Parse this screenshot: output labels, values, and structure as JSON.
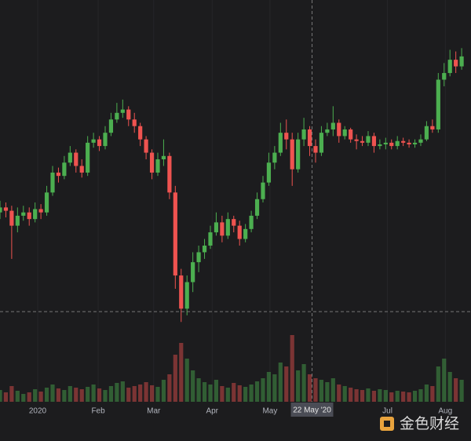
{
  "chart_data": {
    "type": "candlestick",
    "open": [
      7100,
      7250,
      7150,
      6700,
      7000,
      7100,
      6900,
      7200,
      7100,
      7700,
      8300,
      8200,
      8600,
      8900,
      8500,
      8300,
      9200,
      9300,
      9100,
      9500,
      9900,
      10100,
      10200,
      9900,
      9700,
      9300,
      8900,
      8300,
      8700,
      8800,
      7700,
      5200,
      4200,
      5000,
      5600,
      5900,
      6100,
      6500,
      6800,
      6400,
      6900,
      6700,
      6300,
      6600,
      7000,
      7500,
      8000,
      8600,
      8900,
      9500,
      9300,
      8400,
      9300,
      9600,
      9100,
      8900,
      9500,
      9600,
      9800,
      9400,
      9600,
      9300,
      9250,
      9200,
      9400,
      9100,
      9150,
      9200,
      9100,
      9250,
      9200,
      9150,
      9200,
      9300,
      9700,
      9600,
      11100,
      11300,
      11700,
      11500
    ],
    "high": [
      7450,
      7400,
      7300,
      7250,
      7300,
      7250,
      7400,
      7350,
      7900,
      8500,
      8450,
      8800,
      9100,
      9000,
      8700,
      9400,
      9500,
      9400,
      9700,
      10100,
      10400,
      10500,
      10300,
      10100,
      9800,
      9400,
      9000,
      8900,
      9300,
      8900,
      7900,
      5400,
      5200,
      5900,
      6100,
      6300,
      6700,
      7100,
      7000,
      7100,
      7000,
      6850,
      6750,
      7150,
      7700,
      8200,
      8900,
      9100,
      9800,
      9900,
      9500,
      9500,
      9950,
      9700,
      9300,
      9700,
      9800,
      10300,
      9900,
      9700,
      9650,
      9450,
      9400,
      9550,
      9500,
      9300,
      9350,
      9300,
      9400,
      9350,
      9300,
      9300,
      9450,
      9850,
      9900,
      11300,
      11600,
      12000,
      11950,
      12050
    ],
    "low": [
      6900,
      6950,
      5700,
      6500,
      6850,
      6700,
      6800,
      6900,
      7000,
      7600,
      8000,
      8100,
      8500,
      8300,
      8150,
      8200,
      9050,
      8950,
      9000,
      9400,
      9800,
      9950,
      9700,
      9500,
      9100,
      8700,
      8100,
      8200,
      8500,
      7500,
      4800,
      3800,
      4000,
      4700,
      5300,
      5700,
      6000,
      6400,
      6200,
      6300,
      6500,
      6100,
      6200,
      6500,
      6900,
      7400,
      7900,
      8400,
      8800,
      9000,
      7900,
      8300,
      9100,
      8800,
      8600,
      8800,
      9400,
      9400,
      9200,
      9300,
      9200,
      9000,
      9100,
      9100,
      8900,
      9000,
      9000,
      9000,
      9000,
      9100,
      9050,
      9050,
      9100,
      9250,
      9500,
      9500,
      10900,
      11200,
      11300,
      11400
    ],
    "close": [
      7250,
      7150,
      6700,
      7000,
      7100,
      6900,
      7200,
      7100,
      7700,
      8300,
      8200,
      8600,
      8900,
      8500,
      8300,
      9200,
      9300,
      9100,
      9500,
      9900,
      10100,
      10200,
      9900,
      9700,
      9300,
      8900,
      8300,
      8700,
      8800,
      7700,
      5200,
      4200,
      5000,
      5600,
      5900,
      6100,
      6500,
      6800,
      6400,
      6900,
      6700,
      6300,
      6600,
      7000,
      7500,
      8000,
      8600,
      8900,
      9500,
      9300,
      8400,
      9300,
      9600,
      9100,
      8900,
      9500,
      9600,
      9800,
      9400,
      9600,
      9300,
      9250,
      9200,
      9400,
      9100,
      9150,
      9200,
      9100,
      9250,
      9200,
      9150,
      9200,
      9300,
      9700,
      9600,
      11100,
      11300,
      11700,
      11500,
      11800
    ],
    "volume": [
      15,
      12,
      20,
      14,
      10,
      12,
      16,
      13,
      18,
      22,
      17,
      15,
      20,
      18,
      16,
      19,
      22,
      17,
      15,
      20,
      24,
      26,
      18,
      20,
      22,
      25,
      21,
      19,
      28,
      35,
      60,
      75,
      55,
      40,
      30,
      25,
      22,
      28,
      20,
      18,
      24,
      21,
      19,
      22,
      26,
      30,
      38,
      35,
      50,
      45,
      85,
      40,
      48,
      35,
      30,
      28,
      25,
      30,
      22,
      20,
      18,
      16,
      15,
      17,
      14,
      16,
      15,
      12,
      14,
      13,
      12,
      14,
      16,
      22,
      20,
      45,
      55,
      38,
      30,
      28
    ],
    "xlim": [
      0,
      80.6
    ],
    "xticks": [
      {
        "value": 6.45,
        "label": "2020"
      },
      {
        "value": 16.8,
        "label": "Feb"
      },
      {
        "value": 26.3,
        "label": "Mar"
      },
      {
        "value": 36.3,
        "label": "Apr"
      },
      {
        "value": 46.2,
        "label": "May"
      },
      {
        "value": 66.3,
        "label": "Jul"
      },
      {
        "value": 76.2,
        "label": "Aug"
      }
    ],
    "ylim": [
      0,
      13500
    ],
    "volume_lim": [
      0,
      100
    ],
    "up_color": "#4caf50",
    "down_color": "#ef5350",
    "grid": true,
    "crosshair": {
      "x": 53.4,
      "y": 4110,
      "label": "22 May '20"
    },
    "watermark": "金色财经"
  }
}
